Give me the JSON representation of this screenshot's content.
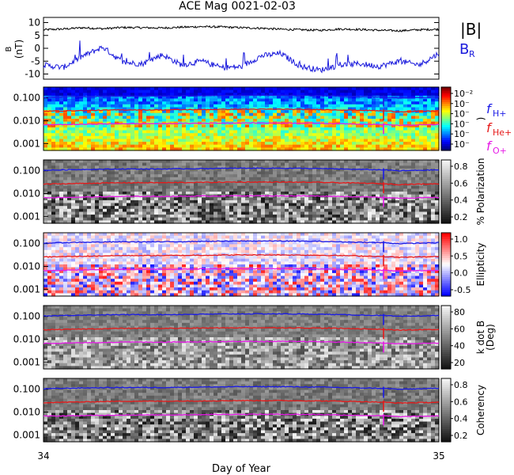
{
  "title": "ACE Mag 0021-02-03",
  "xlabel": "Day of Year",
  "x_ticks": [
    "34",
    "35"
  ],
  "colors": {
    "magnitude": "#000000",
    "br": "#1a1adc",
    "h_plus": "#1a1ae6",
    "he_plus": "#e61a1a",
    "o_plus": "#e61ae6"
  },
  "chart_data": [
    {
      "type": "line",
      "panel": "magnetic_field",
      "ylabel": "B\n(nT)",
      "ylim": [
        -12,
        12
      ],
      "y_ticks": [
        "10",
        "5",
        "0",
        "-5",
        "-10"
      ],
      "x": [
        34.0,
        34.05,
        34.1,
        34.15,
        34.2,
        34.25,
        34.3,
        34.35,
        34.4,
        34.45,
        34.5,
        34.55,
        34.6,
        34.65,
        34.7,
        34.75,
        34.8,
        34.85,
        34.9,
        34.95,
        35.0
      ],
      "series": [
        {
          "name": "|B|",
          "values": [
            7.2,
            7.5,
            8.0,
            7.6,
            8.1,
            8.0,
            7.9,
            8.2,
            8.4,
            8.3,
            8.0,
            7.8,
            7.4,
            7.2,
            7.0,
            7.5,
            7.3,
            7.0,
            6.8,
            7.2,
            7.4
          ]
        },
        {
          "name": "B_R",
          "values": [
            -6.5,
            -7.5,
            -3.0,
            0.5,
            -5.5,
            -6.0,
            -2.5,
            -6.5,
            -5.0,
            -7.5,
            -7.2,
            -3.0,
            -2.0,
            -7.0,
            -8.5,
            -6.5,
            -6.0,
            -7.0,
            -5.0,
            -6.5,
            -2.0
          ]
        }
      ],
      "legend": [
        "|B|",
        "B_R"
      ]
    },
    {
      "type": "heatmap",
      "panel": "power_spectrum",
      "ylabel": "",
      "y_scale": "log",
      "y_ticks": [
        "0.100",
        "0.010",
        "0.001"
      ],
      "colorbar_label": ")",
      "colorbar_ticks": [
        "10⁻²",
        "10⁻",
        "10⁻",
        "10⁻",
        "10⁻",
        "10⁻"
      ],
      "legend": [
        "f_H+",
        "f_He+",
        "f_O+"
      ]
    },
    {
      "type": "heatmap",
      "panel": "polarization",
      "y_scale": "log",
      "y_ticks": [
        "0.100",
        "0.010",
        "0.001"
      ],
      "colorbar_label": "% Polarization",
      "colorbar_ticks": [
        "0.8",
        "0.6",
        "0.4",
        "0.2"
      ]
    },
    {
      "type": "heatmap",
      "panel": "ellipticity",
      "y_scale": "log",
      "y_ticks": [
        "0.100",
        "0.010",
        "0.001"
      ],
      "colorbar_label": "Ellipticity",
      "colorbar_ticks": [
        "1.0",
        "0.5",
        "0.0",
        "-0.5"
      ]
    },
    {
      "type": "heatmap",
      "panel": "k_dot_b",
      "y_scale": "log",
      "y_ticks": [
        "0.100",
        "0.010",
        "0.001"
      ],
      "colorbar_label": "k dot B\n(Deg)",
      "colorbar_ticks": [
        "80",
        "60",
        "40",
        "20"
      ]
    },
    {
      "type": "heatmap",
      "panel": "coherency",
      "y_scale": "log",
      "y_ticks": [
        "0.100",
        "0.010",
        "0.001"
      ],
      "colorbar_label": "Coherency",
      "colorbar_ticks": [
        "0.8",
        "0.6",
        "0.4",
        "0.2"
      ]
    }
  ],
  "gyro_freqs": {
    "x": [
      34.0,
      34.1,
      34.2,
      34.3,
      34.4,
      34.5,
      34.6,
      34.7,
      34.8,
      34.86,
      34.9,
      35.0
    ],
    "h_plus": [
      0.105,
      0.115,
      0.12,
      0.12,
      0.125,
      0.13,
      0.13,
      0.125,
      0.115,
      0.11,
      0.1,
      0.11
    ],
    "he_plus": [
      0.026,
      0.028,
      0.03,
      0.03,
      0.031,
      0.032,
      0.032,
      0.031,
      0.029,
      0.027,
      0.025,
      0.027
    ],
    "o_plus": [
      0.0066,
      0.007,
      0.0075,
      0.0075,
      0.0078,
      0.008,
      0.008,
      0.0078,
      0.0072,
      0.0068,
      0.0063,
      0.0068
    ]
  }
}
